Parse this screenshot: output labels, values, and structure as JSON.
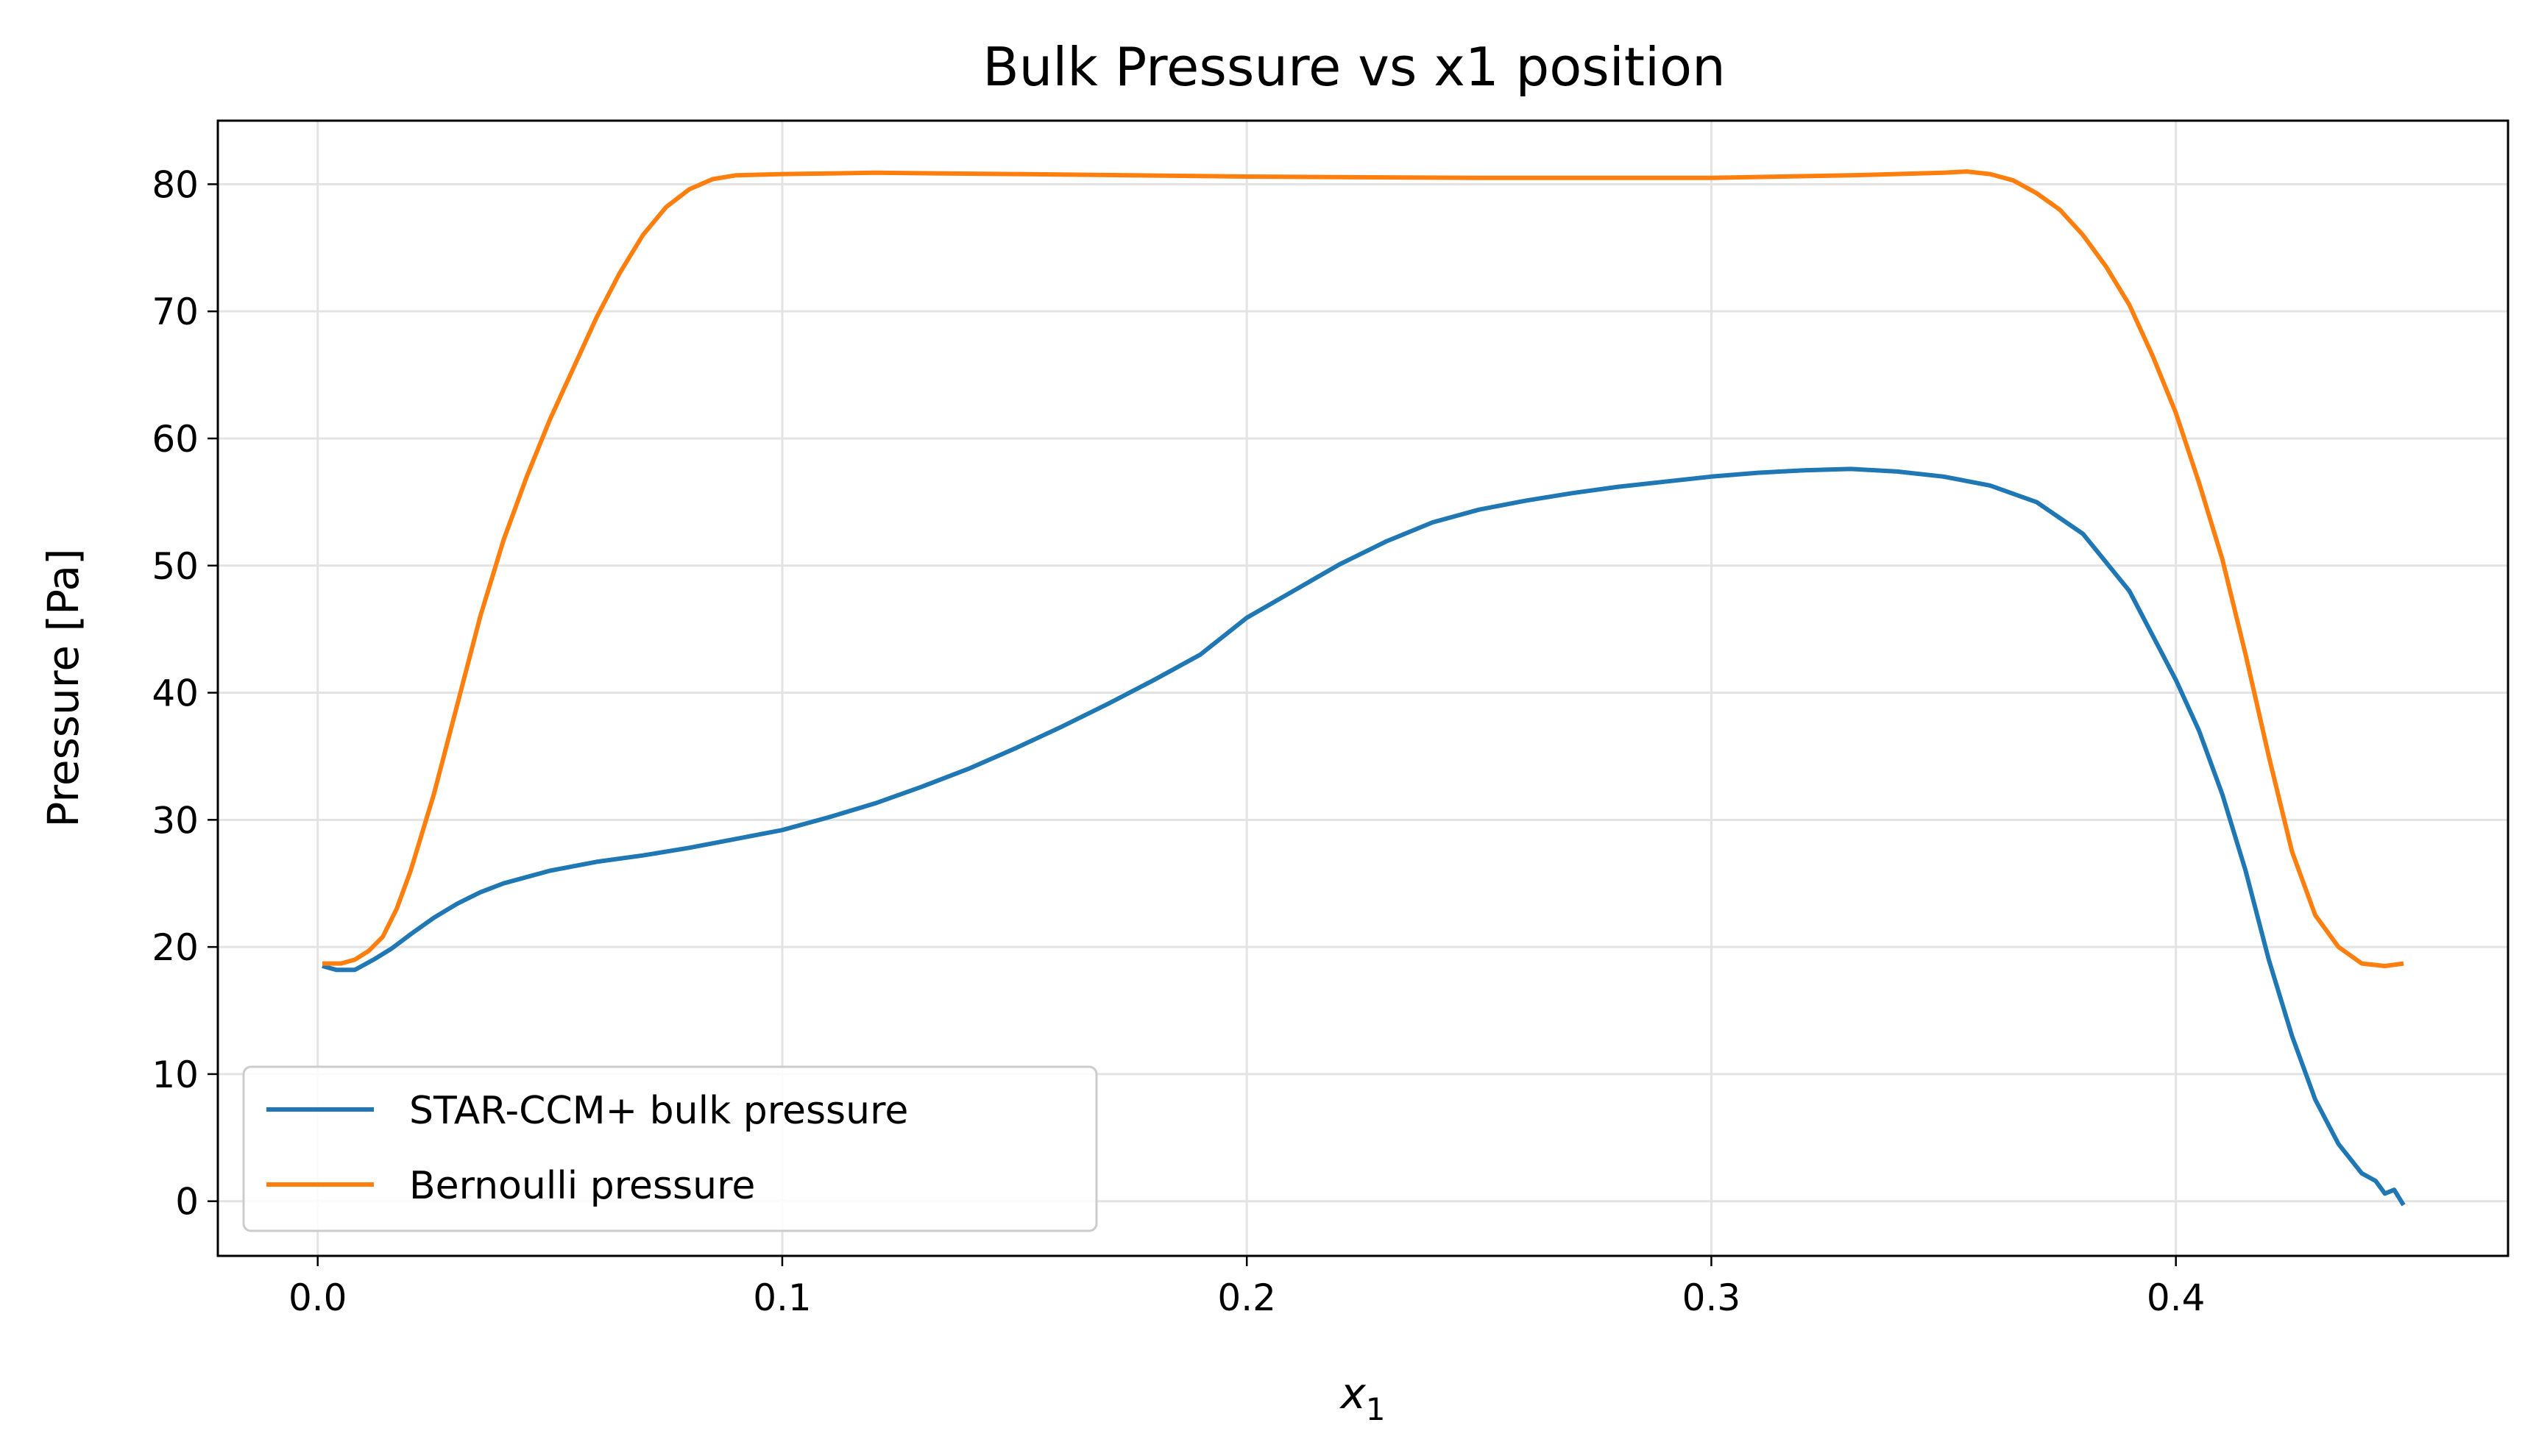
{
  "chart_data": {
    "type": "line",
    "title": "Bulk Pressure vs x1 position",
    "xlabel": "x",
    "xlabel_subscript": "1",
    "ylabel": "Pressure [Pa]",
    "xlim": [
      -0.0215,
      0.4715
    ],
    "ylim": [
      -4.3,
      85.0
    ],
    "xticks": [
      0.0,
      0.1,
      0.2,
      0.3,
      0.4
    ],
    "xtick_labels": [
      "0.0",
      "0.1",
      "0.2",
      "0.3",
      "0.4"
    ],
    "yticks": [
      0,
      10,
      20,
      30,
      40,
      50,
      60,
      70,
      80
    ],
    "ytick_labels": [
      "0",
      "10",
      "20",
      "30",
      "40",
      "50",
      "60",
      "70",
      "80"
    ],
    "grid": true,
    "legend_position": "lower-left",
    "series": [
      {
        "name": "STAR-CCM+ bulk pressure",
        "color": "#1f77b4",
        "points": [
          [
            0.001,
            18.5
          ],
          [
            0.004,
            18.2
          ],
          [
            0.008,
            18.2
          ],
          [
            0.012,
            19.0
          ],
          [
            0.016,
            19.9
          ],
          [
            0.02,
            21.0
          ],
          [
            0.025,
            22.3
          ],
          [
            0.03,
            23.4
          ],
          [
            0.035,
            24.3
          ],
          [
            0.04,
            25.0
          ],
          [
            0.05,
            26.0
          ],
          [
            0.06,
            26.7
          ],
          [
            0.07,
            27.2
          ],
          [
            0.08,
            27.8
          ],
          [
            0.09,
            28.5
          ],
          [
            0.1,
            29.2
          ],
          [
            0.11,
            30.2
          ],
          [
            0.12,
            31.3
          ],
          [
            0.13,
            32.6
          ],
          [
            0.14,
            34.0
          ],
          [
            0.15,
            35.6
          ],
          [
            0.16,
            37.3
          ],
          [
            0.17,
            39.1
          ],
          [
            0.18,
            41.0
          ],
          [
            0.19,
            43.0
          ],
          [
            0.2,
            45.9
          ],
          [
            0.21,
            48.0
          ],
          [
            0.22,
            50.1
          ],
          [
            0.23,
            51.9
          ],
          [
            0.24,
            53.4
          ],
          [
            0.25,
            54.4
          ],
          [
            0.26,
            55.1
          ],
          [
            0.27,
            55.7
          ],
          [
            0.28,
            56.2
          ],
          [
            0.29,
            56.6
          ],
          [
            0.3,
            57.0
          ],
          [
            0.31,
            57.3
          ],
          [
            0.32,
            57.5
          ],
          [
            0.33,
            57.6
          ],
          [
            0.34,
            57.4
          ],
          [
            0.35,
            57.0
          ],
          [
            0.36,
            56.3
          ],
          [
            0.37,
            55.0
          ],
          [
            0.38,
            52.5
          ],
          [
            0.39,
            48.0
          ],
          [
            0.4,
            41.0
          ],
          [
            0.405,
            37.0
          ],
          [
            0.41,
            32.0
          ],
          [
            0.415,
            26.0
          ],
          [
            0.42,
            19.0
          ],
          [
            0.425,
            13.0
          ],
          [
            0.43,
            8.0
          ],
          [
            0.435,
            4.5
          ],
          [
            0.44,
            2.2
          ],
          [
            0.443,
            1.6
          ],
          [
            0.445,
            0.6
          ],
          [
            0.447,
            0.9
          ],
          [
            0.449,
            -0.3
          ]
        ]
      },
      {
        "name": "Bernoulli pressure",
        "color": "#ff7f0e",
        "points": [
          [
            0.001,
            18.7
          ],
          [
            0.005,
            18.7
          ],
          [
            0.008,
            19.0
          ],
          [
            0.011,
            19.7
          ],
          [
            0.014,
            20.8
          ],
          [
            0.017,
            23.0
          ],
          [
            0.02,
            26.0
          ],
          [
            0.025,
            32.0
          ],
          [
            0.03,
            39.0
          ],
          [
            0.035,
            46.0
          ],
          [
            0.04,
            52.0
          ],
          [
            0.045,
            57.0
          ],
          [
            0.05,
            61.5
          ],
          [
            0.055,
            65.5
          ],
          [
            0.06,
            69.5
          ],
          [
            0.065,
            73.0
          ],
          [
            0.07,
            76.0
          ],
          [
            0.075,
            78.2
          ],
          [
            0.08,
            79.6
          ],
          [
            0.085,
            80.4
          ],
          [
            0.09,
            80.7
          ],
          [
            0.1,
            80.8
          ],
          [
            0.12,
            80.9
          ],
          [
            0.15,
            80.8
          ],
          [
            0.2,
            80.6
          ],
          [
            0.25,
            80.5
          ],
          [
            0.28,
            80.5
          ],
          [
            0.3,
            80.5
          ],
          [
            0.33,
            80.7
          ],
          [
            0.35,
            80.9
          ],
          [
            0.355,
            81.0
          ],
          [
            0.36,
            80.8
          ],
          [
            0.365,
            80.3
          ],
          [
            0.37,
            79.3
          ],
          [
            0.375,
            78.0
          ],
          [
            0.38,
            76.0
          ],
          [
            0.385,
            73.5
          ],
          [
            0.39,
            70.5
          ],
          [
            0.395,
            66.5
          ],
          [
            0.4,
            62.0
          ],
          [
            0.405,
            56.5
          ],
          [
            0.41,
            50.5
          ],
          [
            0.415,
            43.0
          ],
          [
            0.42,
            35.0
          ],
          [
            0.425,
            27.5
          ],
          [
            0.43,
            22.5
          ],
          [
            0.435,
            20.0
          ],
          [
            0.44,
            18.7
          ],
          [
            0.445,
            18.5
          ],
          [
            0.449,
            18.7
          ]
        ]
      }
    ]
  }
}
